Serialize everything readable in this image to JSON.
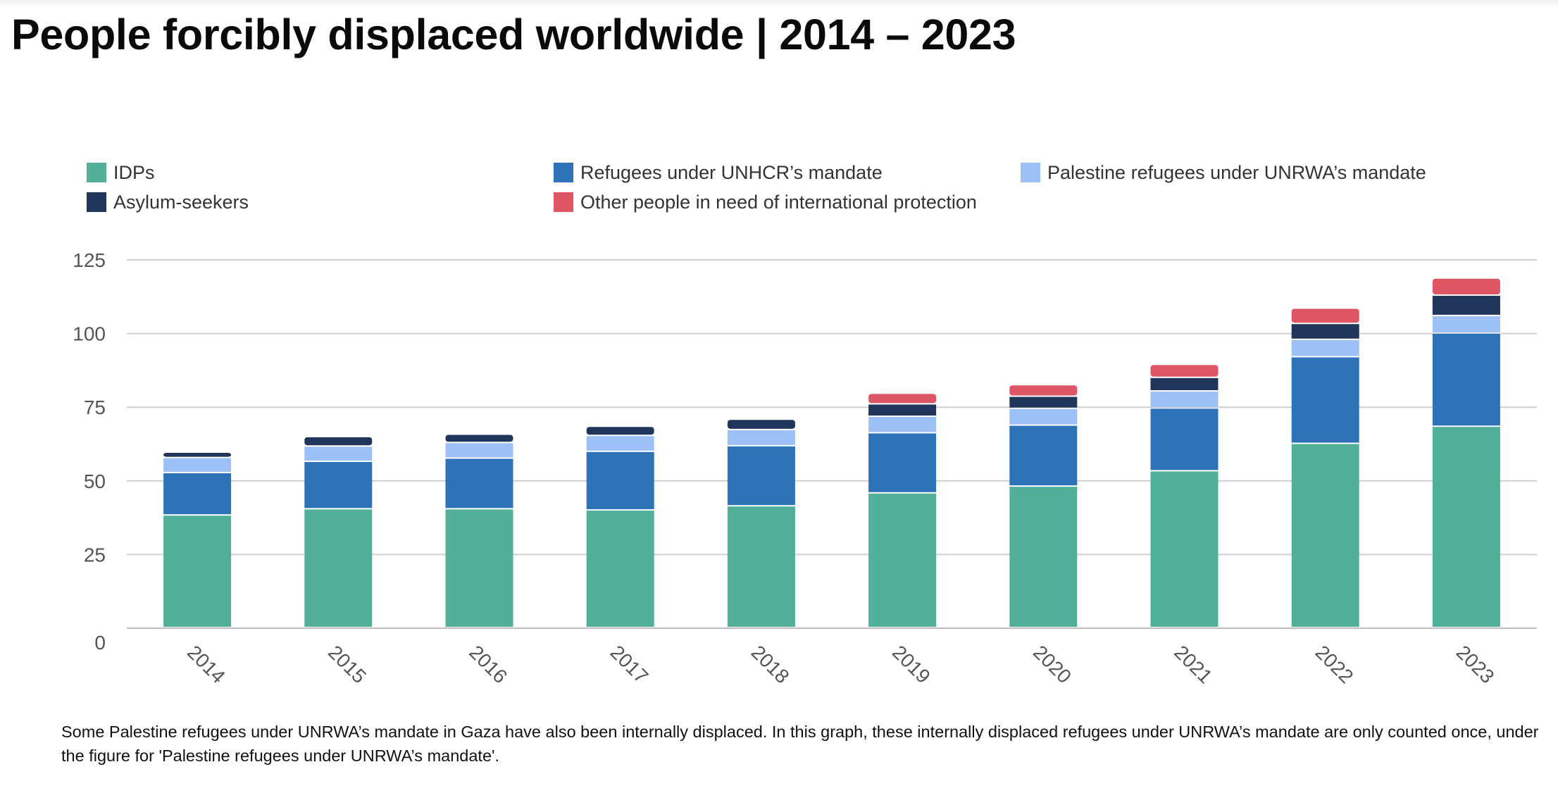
{
  "title": "People forcibly displaced worldwide | 2014 – 2023",
  "footnote": "Some Palestine refugees under UNRWA’s mandate in Gaza have also been internally displaced. In this graph, these internally displaced refugees under UNRWA’s mandate are only counted once, under the figure for 'Palestine refugees under UNRWA’s mandate'.",
  "legend": [
    {
      "label": "IDPs",
      "color": "#52b09a"
    },
    {
      "label": "Refugees under UNHCR’s mandate",
      "color": "#2e72b8"
    },
    {
      "label": "Palestine refugees under UNRWA’s mandate",
      "color": "#9cc0f7"
    },
    {
      "label": "Asylum-seekers",
      "color": "#1f3559"
    },
    {
      "label": "Other people in need of international protection",
      "color": "#de5565"
    }
  ],
  "chart_data": {
    "type": "bar",
    "stacked": true,
    "categories": [
      "2014",
      "2015",
      "2016",
      "2017",
      "2018",
      "2019",
      "2020",
      "2021",
      "2022",
      "2023"
    ],
    "series": [
      {
        "name": "IDPs",
        "color": "#52b09a",
        "values": [
          38.2,
          40.3,
          40.3,
          39.9,
          41.3,
          45.7,
          48.0,
          53.2,
          62.5,
          68.3
        ]
      },
      {
        "name": "Refugees under UNHCR’s mandate",
        "color": "#2e72b8",
        "values": [
          14.4,
          16.1,
          17.2,
          19.9,
          20.4,
          20.4,
          20.7,
          21.3,
          29.4,
          31.6
        ]
      },
      {
        "name": "Palestine refugees under UNRWA’s mandate",
        "color": "#9cc0f7",
        "values": [
          5.1,
          5.2,
          5.3,
          5.4,
          5.5,
          5.6,
          5.7,
          5.8,
          5.9,
          6.0
        ]
      },
      {
        "name": "Asylum-seekers",
        "color": "#1f3559",
        "values": [
          1.8,
          3.2,
          2.8,
          3.1,
          3.5,
          4.2,
          4.1,
          4.6,
          5.4,
          6.9
        ]
      },
      {
        "name": "Other people in need of international protection",
        "color": "#de5565",
        "values": [
          0,
          0,
          0,
          0,
          0,
          3.6,
          3.9,
          4.4,
          5.2,
          5.8
        ]
      }
    ],
    "ylim": [
      0,
      125
    ],
    "yticks": [
      0,
      25,
      50,
      75,
      100,
      125
    ],
    "grid": true,
    "legend_position": "top"
  }
}
